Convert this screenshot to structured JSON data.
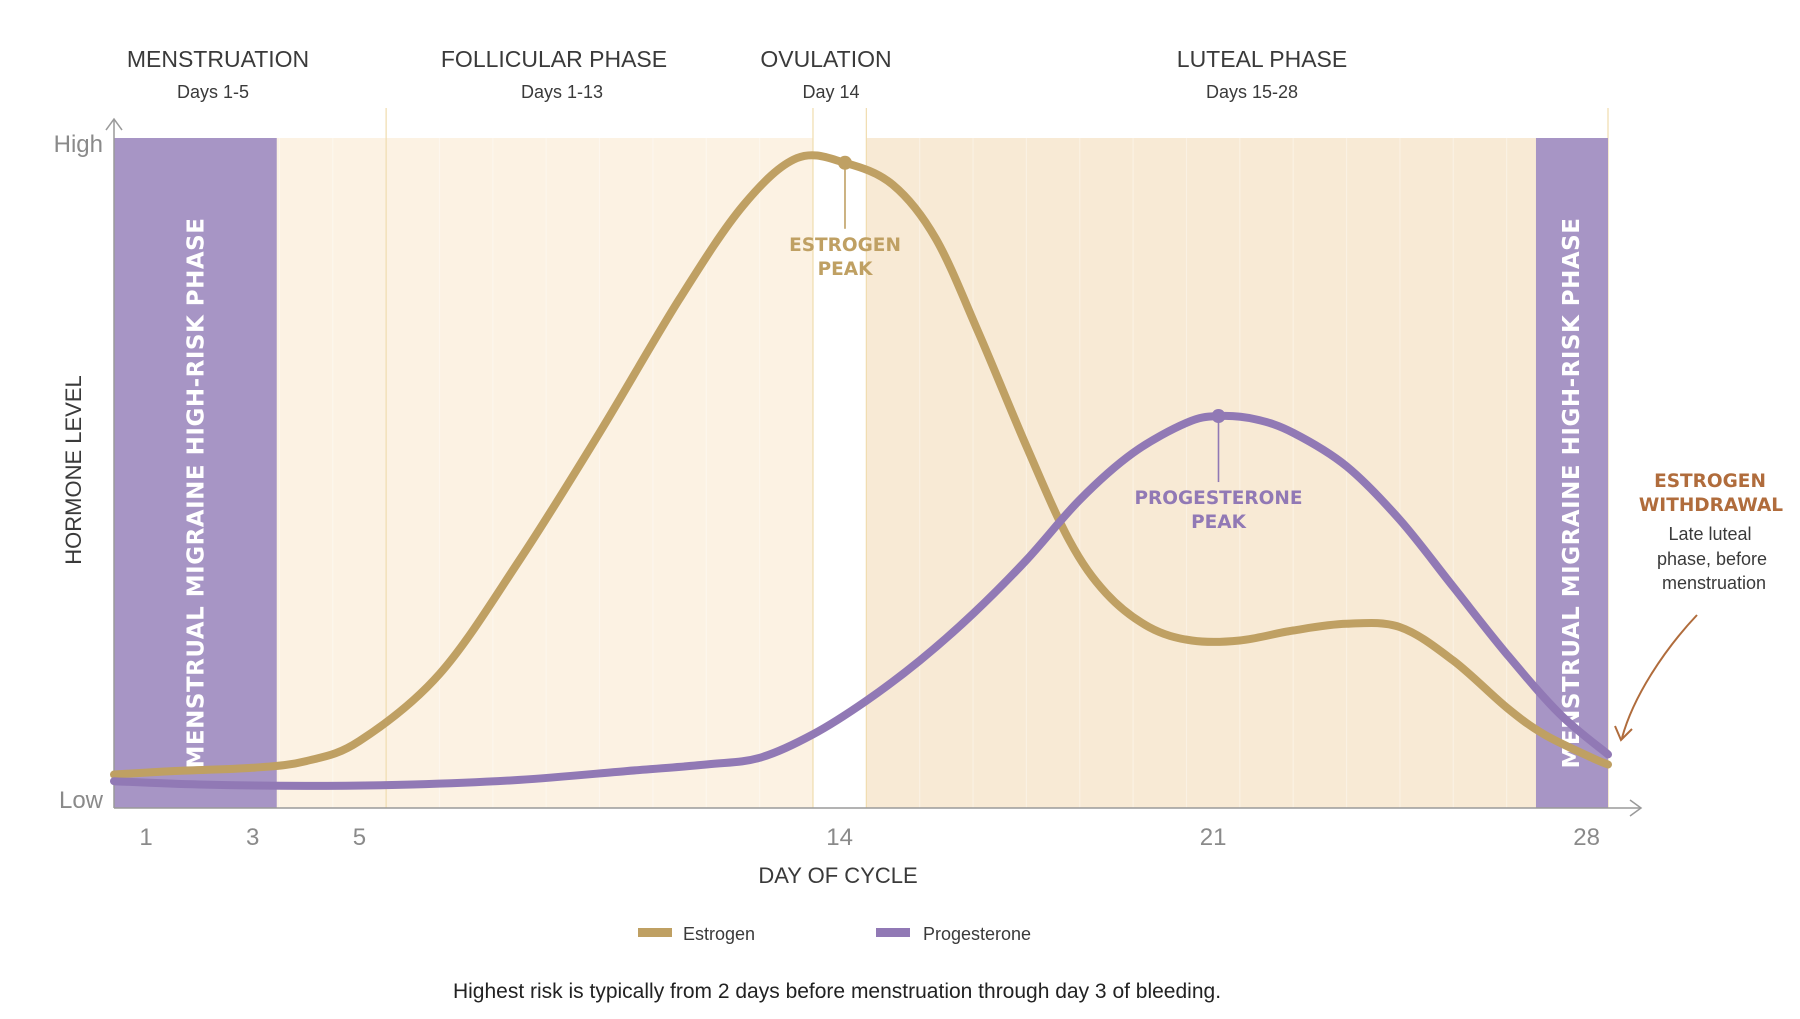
{
  "chart_data": {
    "type": "line",
    "title": "",
    "xlabel": "DAY OF CYCLE",
    "ylabel": "HORMONE LEVEL",
    "xlim": [
      0.4,
      28.4
    ],
    "ylim": [
      0,
      1
    ],
    "x_ticks": [
      1,
      3,
      5,
      14,
      21,
      28
    ],
    "y_ticks": [
      {
        "value": 0,
        "label": "Low"
      },
      {
        "value": 1,
        "label": "High"
      }
    ],
    "phases": [
      {
        "name": "MENSTRUATION",
        "days": "Days 1-5",
        "start": 0.4,
        "end": 5.5
      },
      {
        "name": "FOLLICULAR PHASE",
        "days": "Days 1-13",
        "start": 5.5,
        "end": 13.5
      },
      {
        "name": "OVULATION",
        "days": "Day 14",
        "start": 13.5,
        "end": 14.5
      },
      {
        "name": "LUTEAL PHASE",
        "days": "Days 15-28",
        "start": 14.5,
        "end": 28.4
      }
    ],
    "high_risk_bands": [
      {
        "label": "MENSTRUAL MIGRAINE HIGH-RISK PHASE",
        "start": 0.4,
        "end": 3.45
      },
      {
        "label": "MENSTRUAL MIGRAINE HIGH-RISK PHASE",
        "start": 27.05,
        "end": 28.4
      }
    ],
    "series": [
      {
        "name": "Estrogen",
        "color": "#bfa063",
        "x": [
          0.4,
          1.5,
          3,
          4,
          5,
          6.5,
          8,
          9.5,
          11,
          12.2,
          13.2,
          14.1,
          15,
          15.8,
          16.6,
          17.5,
          18.3,
          19,
          19.8,
          20.6,
          21.5,
          22.5,
          23.5,
          24.5,
          25.5,
          26.5,
          27.2,
          28.1,
          28.4
        ],
        "values": [
          0.05,
          0.055,
          0.06,
          0.07,
          0.1,
          0.2,
          0.37,
          0.56,
          0.76,
          0.9,
          0.97,
          0.963,
          0.93,
          0.85,
          0.71,
          0.54,
          0.4,
          0.32,
          0.27,
          0.25,
          0.25,
          0.265,
          0.275,
          0.27,
          0.22,
          0.15,
          0.11,
          0.075,
          0.065
        ]
      },
      {
        "name": "Progesterone",
        "color": "#9179b5",
        "x": [
          0.4,
          2,
          4,
          6,
          8,
          10,
          11.5,
          12.5,
          13.5,
          14.5,
          15.5,
          16.5,
          17.5,
          18.5,
          19.5,
          20.5,
          21.1,
          21.8,
          22.5,
          23.5,
          24.5,
          25.5,
          26.5,
          27.5,
          28.4
        ],
        "values": [
          0.04,
          0.035,
          0.033,
          0.035,
          0.042,
          0.055,
          0.065,
          0.075,
          0.11,
          0.16,
          0.22,
          0.29,
          0.37,
          0.46,
          0.53,
          0.575,
          0.585,
          0.58,
          0.56,
          0.51,
          0.43,
          0.33,
          0.23,
          0.14,
          0.08
        ]
      }
    ],
    "annotations": [
      {
        "label": "ESTROGEN PEAK",
        "series": "Estrogen",
        "x": 14.1,
        "y": 0.963
      },
      {
        "label": "PROGESTERONE PEAK",
        "series": "Progesterone",
        "x": 21.1,
        "y": 0.585
      }
    ],
    "note": {
      "title": "ESTROGEN WITHDRAWAL",
      "lines": [
        "Late luteal",
        "phase, before",
        "menstruation"
      ]
    },
    "caption": "Highest risk is typically from 2 days before menstruation through day 3 of bleeding.",
    "legend": [
      "Estrogen",
      "Progesterone"
    ],
    "legend_position": "bottom-center"
  },
  "colors": {
    "estrogen": "#bfa063",
    "progesterone": "#9179b5",
    "risk_band": "#a795c5",
    "follicular_bg": "#fcf2e3",
    "luteal_bg": "#f8ead5",
    "ovulation_bg": "#ffffff",
    "withdrawal": "#b06c3c",
    "axis": "#9a9a9a"
  }
}
